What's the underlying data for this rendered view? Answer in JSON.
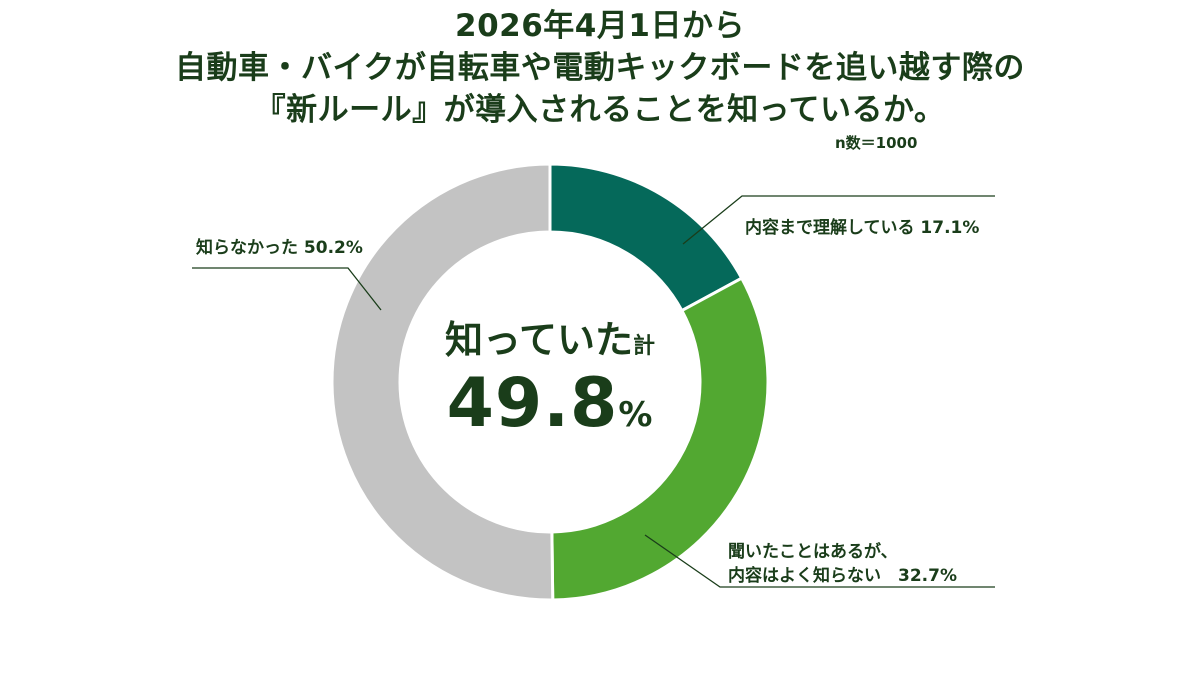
{
  "title_lines": [
    "2026年4月1日から",
    "自動車・バイクが自転車や電動キックボードを追い越す際の",
    "『新ルール』が導入されることを知っているか。"
  ],
  "sample_size": "n数＝1000",
  "center": {
    "label": "知っていた",
    "label_suffix": "計",
    "value": "49.8",
    "unit": "%"
  },
  "callouts": {
    "understand": "内容まで理解している 17.1%",
    "heard_line1": "聞いたことはあるが、",
    "heard_line2": "内容はよく知らない　32.7%",
    "not_known": "知らなかった 50.2%"
  },
  "colors": {
    "understand": "#05695a",
    "heard": "#52a831",
    "not_known": "#c3c3c3",
    "text": "#1a3d1a"
  },
  "chart_data": {
    "type": "pie",
    "style": "donut",
    "title": "2026年4月1日から 自動車・バイクが自転車や電動キックボードを追い越す際の『新ルール』が導入されることを知っているか。",
    "categories": [
      "内容まで理解している",
      "聞いたことはあるが、内容はよく知らない",
      "知らなかった"
    ],
    "values": [
      17.1,
      32.7,
      50.2
    ],
    "unit": "%",
    "n": 1000
  }
}
